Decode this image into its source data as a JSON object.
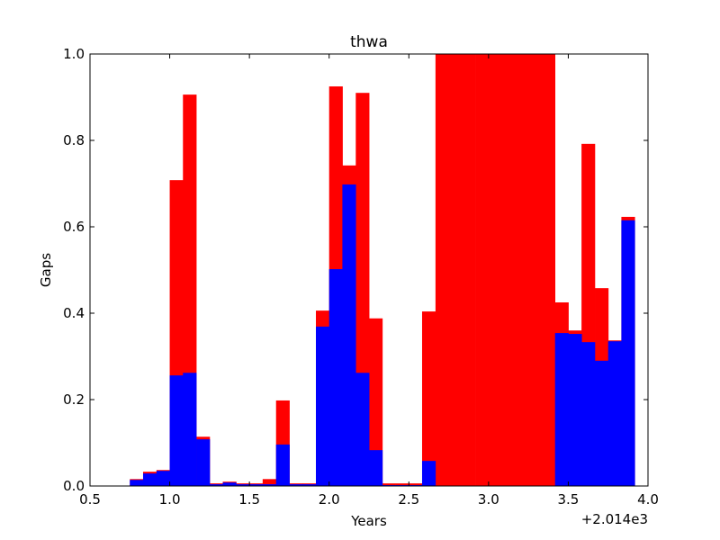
{
  "chart_data": {
    "type": "bar",
    "title": "thwa",
    "xlabel": "Years",
    "ylabel": "Gaps",
    "x_offset_label": "+2.014e3",
    "xlim": [
      0.5,
      4.0
    ],
    "ylim": [
      0.0,
      1.0
    ],
    "xticks": [
      "0.5",
      "1.0",
      "1.5",
      "2.0",
      "2.5",
      "3.0",
      "3.5",
      "4.0"
    ],
    "yticks": [
      "0.0",
      "0.2",
      "0.4",
      "0.6",
      "0.8",
      "1.0"
    ],
    "grid": false,
    "legend": "none",
    "bin_width": 0.0833,
    "bin_starts": [
      0.75,
      0.833,
      0.917,
      1.0,
      1.083,
      1.167,
      1.25,
      1.333,
      1.417,
      1.5,
      1.583,
      1.667,
      1.75,
      1.833,
      1.917,
      2.0,
      2.083,
      2.167,
      2.25,
      2.333,
      2.417,
      2.5,
      2.583,
      2.667,
      2.75,
      2.833,
      2.917,
      3.0,
      3.083,
      3.167,
      3.25,
      3.333,
      3.417,
      3.5,
      3.583,
      3.667,
      3.75,
      3.833
    ],
    "series": [
      {
        "color": "#ff0000",
        "values": [
          0.016,
          0.033,
          0.037,
          0.708,
          0.906,
          0.114,
          0.006,
          0.01,
          0.006,
          0.006,
          0.016,
          0.198,
          0.006,
          0.006,
          0.406,
          0.925,
          0.742,
          0.91,
          0.388,
          0.006,
          0.006,
          0.006,
          0.404,
          1.0,
          1.0,
          1.0,
          1.0,
          1.0,
          1.0,
          1.0,
          1.0,
          1.0,
          0.425,
          0.36,
          0.792,
          0.458,
          0.337,
          0.623
        ]
      },
      {
        "color": "#0000ff",
        "values": [
          0.014,
          0.029,
          0.035,
          0.256,
          0.262,
          0.108,
          0.004,
          0.008,
          0.004,
          0.004,
          0.004,
          0.096,
          0.004,
          0.004,
          0.369,
          0.502,
          0.698,
          0.262,
          0.083,
          0.002,
          0.002,
          0.002,
          0.058,
          0.0,
          0.0,
          0.0,
          0.0,
          0.0,
          0.0,
          0.0,
          0.0,
          0.0,
          0.354,
          0.352,
          0.333,
          0.29,
          0.335,
          0.615
        ]
      }
    ]
  }
}
